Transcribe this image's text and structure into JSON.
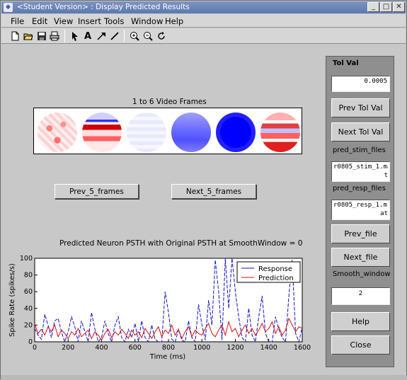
{
  "window": {
    "title": "<Student Version> : Display Predicted Results",
    "app_icon": "matlab-figure-icon",
    "controls": [
      "minimize",
      "maximize",
      "close"
    ]
  },
  "menu": {
    "file": "File",
    "edit": "Edit",
    "view": "View",
    "insert": "Insert",
    "tools": "Tools",
    "window": "Window",
    "help": "Help"
  },
  "toolbar": {
    "icons": [
      "new-file-icon",
      "open-file-icon",
      "save-icon",
      "print-icon",
      "select-arrow-icon",
      "insert-text-icon",
      "insert-arrow-icon",
      "insert-line-icon",
      "zoom-in-icon",
      "zoom-out-icon",
      "rotate-icon"
    ],
    "text_tool": "A"
  },
  "frames": {
    "caption": "1 to 6 Video Frames",
    "prev_label": "Prev_5_frames",
    "next_label": "Next_5_frames"
  },
  "plot": {
    "title": "Predicted Neuron PSTH with Original PSTH at SmoothWindow = 0",
    "xlabel": "Time (ms)",
    "ylabel": "Spike Rate (spikes/s)",
    "legend": [
      "Response",
      "Prediction"
    ]
  },
  "chart_data": {
    "type": "line",
    "title": "Predicted Neuron PSTH with Original PSTH at SmoothWindow = 0",
    "xlabel": "Time (ms)",
    "ylabel": "Spike Rate (spikes/s)",
    "xlim": [
      0,
      1600
    ],
    "ylim": [
      0,
      100
    ],
    "xticks": [
      0,
      200,
      400,
      600,
      800,
      1000,
      1200,
      1400,
      1600
    ],
    "yticks": [
      0,
      20,
      40,
      60,
      80,
      100
    ],
    "grid": false,
    "legend_position": "top-right",
    "colors": {
      "Response": "#1010c8",
      "Prediction": "#d01010"
    },
    "series": [
      {
        "name": "Response",
        "x": [
          0,
          20,
          40,
          60,
          80,
          100,
          120,
          140,
          160,
          180,
          200,
          220,
          240,
          260,
          280,
          300,
          320,
          340,
          360,
          380,
          400,
          420,
          440,
          460,
          480,
          500,
          520,
          540,
          560,
          580,
          600,
          620,
          640,
          660,
          680,
          700,
          720,
          740,
          760,
          780,
          800,
          820,
          840,
          860,
          880,
          900,
          920,
          940,
          960,
          980,
          1000,
          1020,
          1040,
          1060,
          1080,
          1100,
          1120,
          1140,
          1160,
          1180,
          1200,
          1220,
          1240,
          1260,
          1280,
          1300,
          1320,
          1340,
          1360,
          1380,
          1400,
          1420,
          1440,
          1460,
          1480,
          1500,
          1520,
          1540,
          1560,
          1580,
          1600
        ],
        "values": [
          16,
          8,
          3,
          33,
          20,
          5,
          25,
          28,
          12,
          0,
          12,
          30,
          18,
          0,
          25,
          12,
          0,
          35,
          15,
          0,
          5,
          25,
          10,
          0,
          20,
          30,
          5,
          0,
          15,
          5,
          22,
          0,
          25,
          5,
          0,
          20,
          3,
          0,
          0,
          60,
          35,
          3,
          0,
          15,
          2,
          0,
          25,
          5,
          0,
          45,
          20,
          2,
          50,
          20,
          98,
          60,
          2,
          100,
          40,
          100,
          60,
          30,
          5,
          0,
          40,
          8,
          0,
          30,
          55,
          10,
          0,
          0,
          30,
          15,
          5,
          0,
          55,
          98,
          10,
          0,
          18
        ]
      },
      {
        "name": "Prediction",
        "x": [
          0,
          20,
          40,
          60,
          80,
          100,
          120,
          140,
          160,
          180,
          200,
          220,
          240,
          260,
          280,
          300,
          320,
          340,
          360,
          380,
          400,
          420,
          440,
          460,
          480,
          500,
          520,
          540,
          560,
          580,
          600,
          620,
          640,
          660,
          680,
          700,
          720,
          740,
          760,
          780,
          800,
          820,
          840,
          860,
          880,
          900,
          920,
          940,
          960,
          980,
          1000,
          1020,
          1040,
          1060,
          1080,
          1100,
          1120,
          1140,
          1160,
          1180,
          1200,
          1220,
          1240,
          1260,
          1280,
          1300,
          1320,
          1340,
          1360,
          1380,
          1400,
          1420,
          1440,
          1460,
          1480,
          1500,
          1520,
          1540,
          1560,
          1580,
          1600
        ],
        "values": [
          22,
          10,
          15,
          8,
          18,
          12,
          20,
          6,
          14,
          10,
          4,
          12,
          8,
          16,
          6,
          10,
          14,
          4,
          12,
          8,
          2,
          10,
          15,
          5,
          12,
          8,
          15,
          10,
          4,
          14,
          8,
          12,
          5,
          16,
          10,
          4,
          12,
          18,
          6,
          14,
          10,
          20,
          8,
          15,
          4,
          12,
          18,
          6,
          14,
          10,
          8,
          16,
          22,
          10,
          6,
          14,
          20,
          8,
          24,
          12,
          16,
          6,
          14,
          20,
          10,
          16,
          8,
          14,
          22,
          12,
          16,
          24,
          10,
          18,
          8,
          14,
          28,
          20,
          12,
          18,
          16
        ]
      }
    ]
  },
  "panel": {
    "title": "Tol Val",
    "tol_value": "0.0005",
    "prev_tol_label": "Prev Tol Val",
    "next_tol_label": "Next Tol Val",
    "stim_files_label": "pred_stim_files",
    "stim_file_value_1": "r0805_stim_1.ma",
    "stim_file_value_2": "t",
    "resp_files_label": "pred_resp_files",
    "resp_file_value_1": "r0805_resp_1.m",
    "resp_file_value_2": "at",
    "prev_file_label": "Prev_file",
    "next_file_label": "Next_file",
    "smooth_label": "Smooth_window",
    "smooth_value": "2",
    "help_label": "Help",
    "close_label": "Close"
  }
}
